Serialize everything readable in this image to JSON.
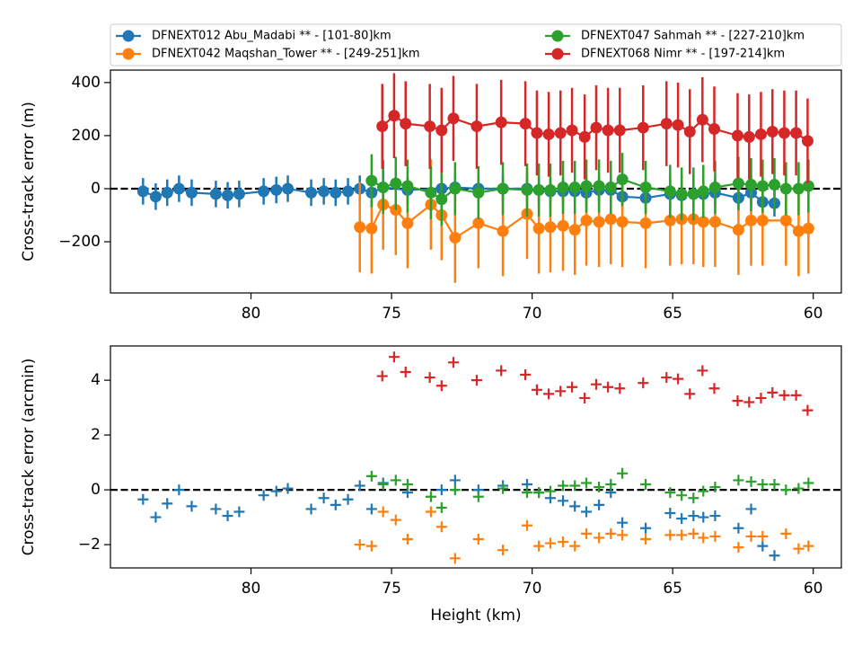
{
  "chart_data": [
    {
      "type": "errorbar",
      "ylabel": "Cross-track error (m)",
      "xlim": [
        85,
        59
      ],
      "xticks": [
        80,
        75,
        70,
        65,
        60
      ],
      "ylim": [
        -393,
        447
      ],
      "yticks": [
        {
          "value": -200,
          "label": "−200"
        },
        0,
        200,
        400
      ],
      "hline": 0,
      "legend": "top",
      "series": [
        {
          "name": "DFNEXT012 Abu_Madabi **  - [101-80]km",
          "color": "#1f77b4",
          "yerr": 50,
          "x": [
            83.84,
            83.39,
            82.98,
            82.56,
            82.11,
            81.25,
            80.83,
            80.42,
            79.55,
            79.1,
            78.69,
            77.86,
            77.41,
            76.99,
            76.55,
            76.13,
            75.71,
            75.3,
            74.43,
            73.22,
            72.74,
            71.91,
            71.04,
            70.18,
            69.76,
            69.35,
            68.9,
            68.48,
            68.07,
            67.62,
            67.2,
            66.79,
            65.96,
            65.09,
            64.68,
            64.26,
            63.91,
            63.49,
            62.66,
            62.21,
            61.8,
            61.38
          ],
          "values": [
            -10,
            -30,
            -15,
            0,
            -15,
            -20,
            -25,
            -20,
            -10,
            -5,
            0,
            -15,
            -10,
            -15,
            -10,
            0,
            -15,
            5,
            -5,
            0,
            5,
            0,
            0,
            0,
            -5,
            -10,
            -10,
            -10,
            -15,
            -5,
            -5,
            -30,
            -35,
            -20,
            -25,
            -20,
            -20,
            -15,
            -35,
            -15,
            -50,
            -55
          ]
        },
        {
          "name": "DFNEXT042 Maqshan_Tower **  - [249-251]km",
          "color": "#ff7f0e",
          "yerr": 170,
          "x": [
            76.13,
            75.71,
            75.3,
            74.85,
            74.43,
            73.6,
            73.22,
            72.74,
            71.91,
            71.04,
            70.18,
            69.76,
            69.35,
            68.9,
            68.48,
            68.07,
            67.62,
            67.2,
            66.79,
            65.96,
            65.09,
            64.68,
            64.26,
            63.91,
            63.49,
            62.66,
            62.21,
            61.8,
            60.97,
            60.52,
            60.17
          ],
          "values": [
            -145,
            -150,
            -60,
            -80,
            -130,
            -60,
            -100,
            -185,
            -130,
            -160,
            -95,
            -150,
            -145,
            -140,
            -155,
            -120,
            -125,
            -115,
            -125,
            -130,
            -120,
            -115,
            -115,
            -125,
            -125,
            -155,
            -120,
            -120,
            -120,
            -160,
            -150
          ]
        },
        {
          "name": "DFNEXT047 Sahmah **  - [227-210]km",
          "color": "#2ca02c",
          "yerr": 100,
          "x": [
            75.71,
            75.3,
            74.85,
            74.43,
            73.6,
            73.22,
            72.74,
            71.91,
            71.04,
            70.18,
            69.76,
            69.35,
            68.9,
            68.48,
            68.07,
            67.62,
            67.2,
            66.79,
            65.96,
            65.09,
            64.68,
            64.26,
            63.91,
            63.49,
            62.66,
            62.21,
            61.8,
            61.38,
            60.97,
            60.52,
            60.17
          ],
          "values": [
            30,
            5,
            20,
            10,
            -15,
            -40,
            0,
            -15,
            0,
            -5,
            -5,
            -5,
            5,
            5,
            10,
            10,
            5,
            35,
            5,
            -10,
            -20,
            -20,
            -10,
            5,
            20,
            15,
            10,
            15,
            0,
            0,
            10
          ]
        },
        {
          "name": "DFNEXT068 Nimr **  - [197-214]km",
          "color": "#d62728",
          "yerr": 160,
          "x": [
            75.33,
            74.91,
            74.5,
            73.64,
            73.22,
            72.8,
            71.97,
            71.1,
            70.24,
            69.83,
            69.41,
            68.99,
            68.58,
            68.13,
            67.72,
            67.3,
            66.88,
            66.05,
            65.22,
            64.81,
            64.39,
            63.94,
            63.52,
            62.69,
            62.28,
            61.86,
            61.45,
            61.03,
            60.61,
            60.2
          ],
          "values": [
            235,
            275,
            245,
            235,
            220,
            265,
            235,
            250,
            245,
            210,
            205,
            210,
            220,
            195,
            230,
            220,
            220,
            230,
            245,
            240,
            215,
            260,
            225,
            200,
            195,
            205,
            215,
            210,
            210,
            180
          ]
        }
      ]
    },
    {
      "type": "scatter",
      "ylabel": "Cross-track error (arcmin)",
      "xlabel": "Height (km)",
      "xlim": [
        85,
        59
      ],
      "xticks": [
        80,
        75,
        70,
        65,
        60
      ],
      "ylim": [
        -2.85,
        5.25
      ],
      "yticks": [
        {
          "value": -2,
          "label": "−2"
        },
        0,
        2,
        4
      ],
      "hline": 0,
      "series": [
        {
          "color": "#1f77b4",
          "x": [
            83.84,
            83.39,
            82.98,
            82.56,
            82.11,
            81.25,
            80.83,
            80.42,
            79.55,
            79.1,
            78.69,
            77.86,
            77.41,
            76.99,
            76.55,
            76.13,
            75.71,
            75.3,
            74.43,
            73.22,
            72.74,
            71.91,
            71.04,
            70.18,
            69.76,
            69.35,
            68.9,
            68.48,
            68.07,
            67.62,
            67.2,
            66.79,
            65.96,
            65.09,
            64.68,
            64.26,
            63.91,
            63.49,
            62.66,
            62.21,
            61.8,
            61.38
          ],
          "values": [
            -0.35,
            -1.0,
            -0.5,
            0.0,
            -0.6,
            -0.7,
            -0.95,
            -0.8,
            -0.2,
            -0.05,
            0.05,
            -0.7,
            -0.3,
            -0.55,
            -0.35,
            0.15,
            -0.7,
            0.25,
            -0.1,
            0.0,
            0.35,
            0.0,
            0.15,
            0.2,
            -0.1,
            -0.3,
            -0.4,
            -0.6,
            -0.8,
            -0.55,
            -0.1,
            -1.2,
            -1.4,
            -0.85,
            -1.05,
            -0.95,
            -1.0,
            -0.95,
            -1.4,
            -0.7,
            -2.05,
            -2.4
          ]
        },
        {
          "color": "#ff7f0e",
          "x": [
            76.13,
            75.71,
            75.3,
            74.85,
            74.43,
            73.6,
            73.22,
            72.74,
            71.91,
            71.04,
            70.18,
            69.76,
            69.35,
            68.9,
            68.48,
            68.07,
            67.62,
            67.2,
            66.79,
            65.96,
            65.09,
            64.68,
            64.26,
            63.91,
            63.49,
            62.66,
            62.21,
            61.8,
            60.97,
            60.52,
            60.17
          ],
          "values": [
            -2.0,
            -2.05,
            -0.8,
            -1.1,
            -1.8,
            -0.8,
            -1.35,
            -2.5,
            -1.8,
            -2.2,
            -1.3,
            -2.05,
            -1.95,
            -1.9,
            -2.05,
            -1.6,
            -1.75,
            -1.6,
            -1.65,
            -1.8,
            -1.65,
            -1.65,
            -1.6,
            -1.75,
            -1.7,
            -2.1,
            -1.7,
            -1.7,
            -1.6,
            -2.15,
            -2.05
          ]
        },
        {
          "color": "#2ca02c",
          "x": [
            75.71,
            75.3,
            74.85,
            74.43,
            73.6,
            73.22,
            72.74,
            71.91,
            71.04,
            70.18,
            69.76,
            69.35,
            68.9,
            68.48,
            68.07,
            67.62,
            67.2,
            66.79,
            65.96,
            65.09,
            64.68,
            64.26,
            63.91,
            63.49,
            62.66,
            62.21,
            61.8,
            61.38,
            60.97,
            60.52,
            60.17
          ],
          "values": [
            0.5,
            0.2,
            0.35,
            0.2,
            -0.25,
            -0.65,
            0.0,
            -0.25,
            0.05,
            -0.1,
            -0.1,
            -0.05,
            0.15,
            0.15,
            0.25,
            0.1,
            0.2,
            0.6,
            0.2,
            -0.1,
            -0.2,
            -0.3,
            -0.05,
            0.1,
            0.35,
            0.3,
            0.2,
            0.2,
            0.0,
            0.05,
            0.25
          ]
        },
        {
          "color": "#d62728",
          "x": [
            75.33,
            74.91,
            74.5,
            73.64,
            73.22,
            72.8,
            71.97,
            71.1,
            70.24,
            69.83,
            69.41,
            68.99,
            68.58,
            68.13,
            67.72,
            67.3,
            66.88,
            66.05,
            65.22,
            64.81,
            64.39,
            63.94,
            63.52,
            62.69,
            62.28,
            61.86,
            61.45,
            61.03,
            60.61,
            60.2
          ],
          "values": [
            4.15,
            4.85,
            4.3,
            4.1,
            3.8,
            4.65,
            4.0,
            4.35,
            4.2,
            3.65,
            3.5,
            3.6,
            3.75,
            3.35,
            3.85,
            3.75,
            3.7,
            3.9,
            4.1,
            4.05,
            3.5,
            4.35,
            3.7,
            3.25,
            3.2,
            3.35,
            3.55,
            3.45,
            3.45,
            2.9
          ]
        }
      ]
    }
  ]
}
